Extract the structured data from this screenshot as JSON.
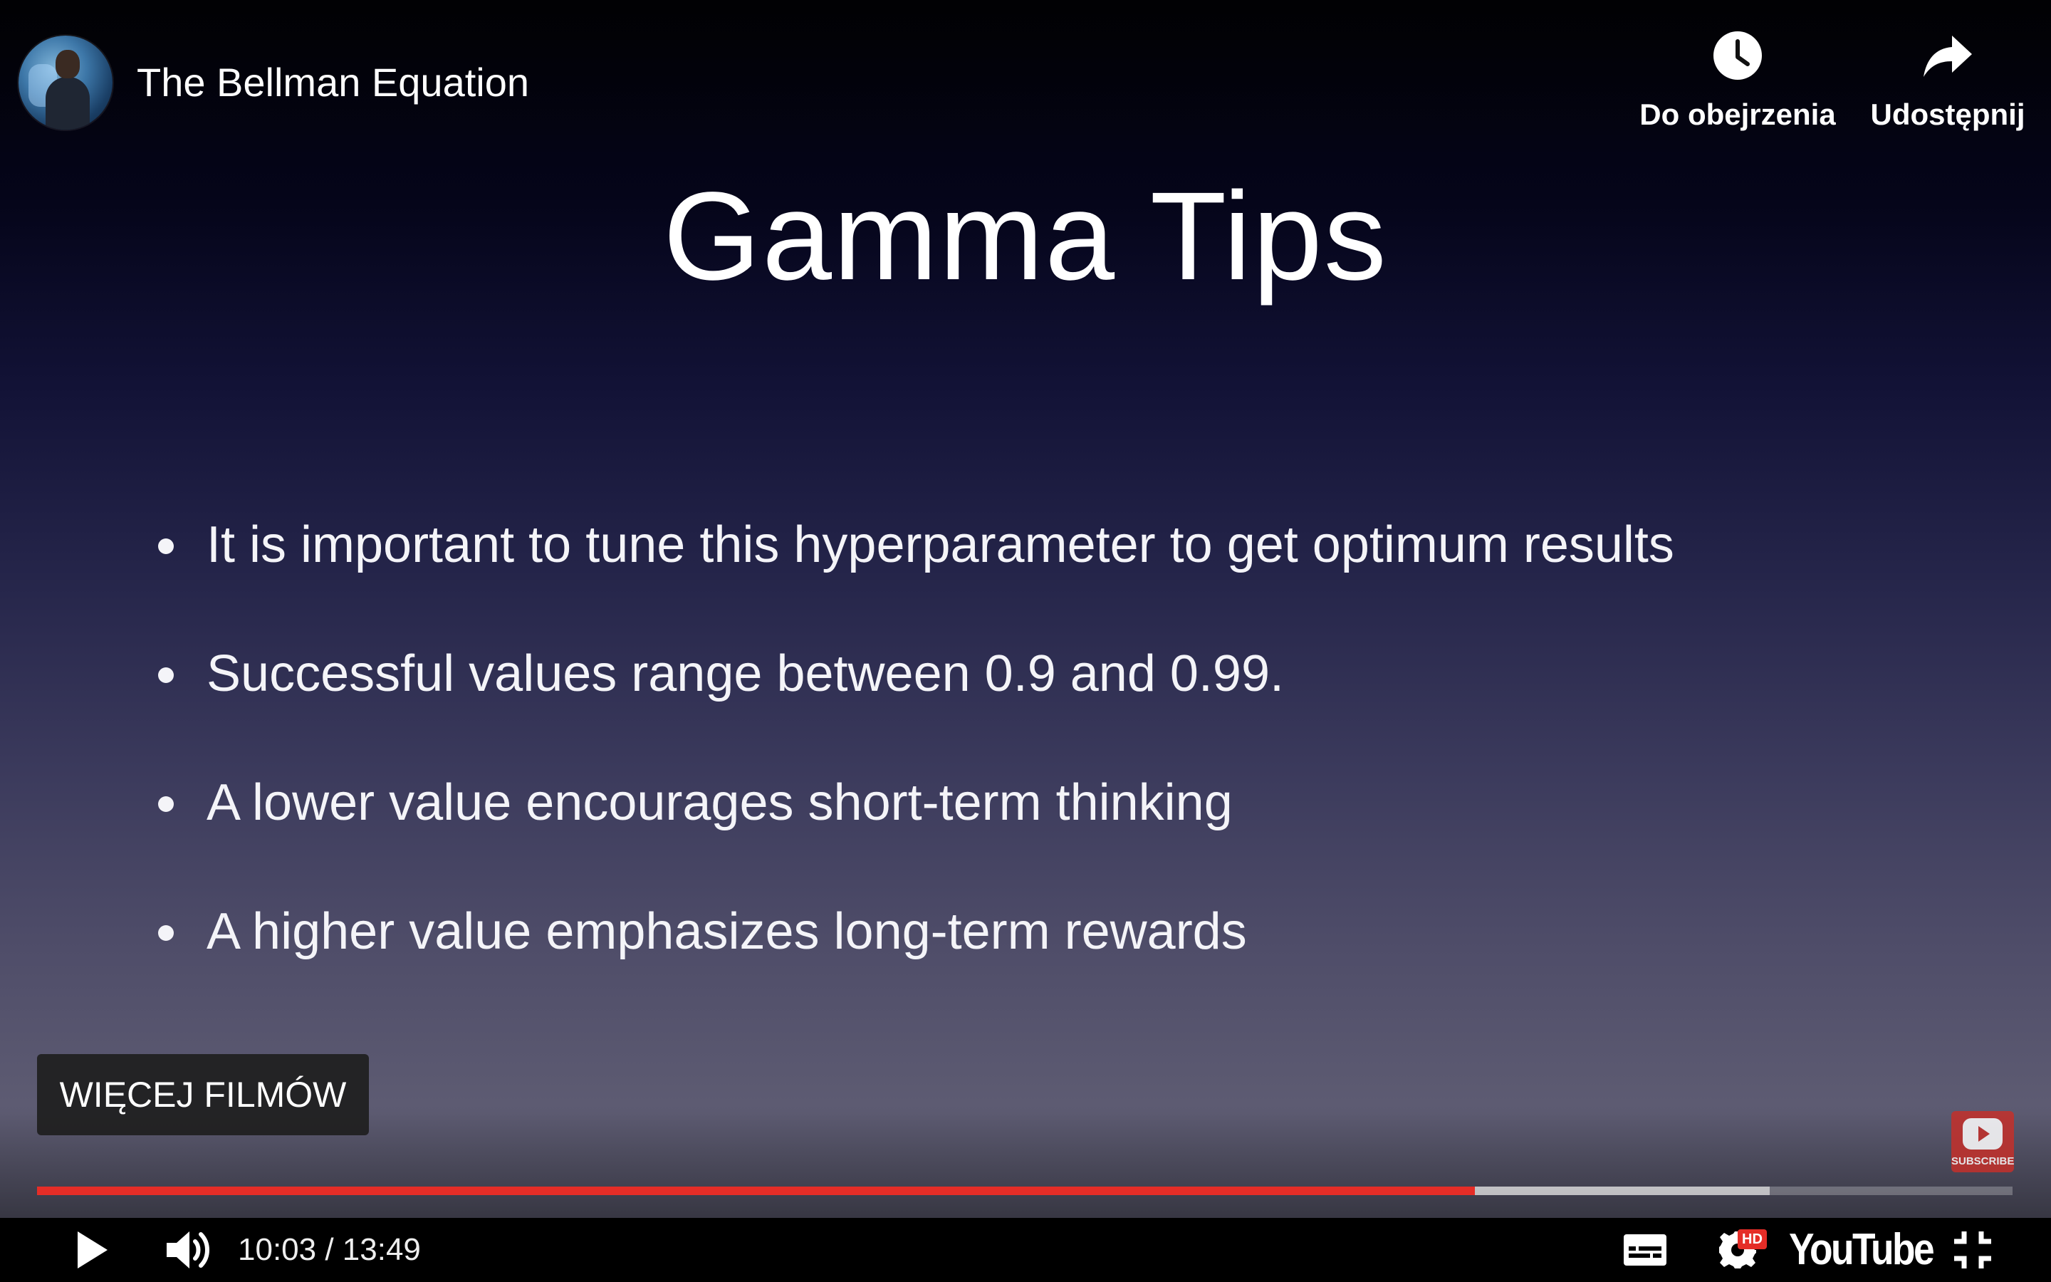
{
  "header": {
    "title": "The Bellman Equation",
    "actions": [
      {
        "label": "Do obejrzenia",
        "icon": "clock-icon"
      },
      {
        "label": "Udostępnij",
        "icon": "share-arrow-icon"
      }
    ]
  },
  "slide": {
    "title": "Gamma Tips",
    "bullets": [
      "It is important to tune this hyperparameter to get optimum results",
      "Successful values range between 0.9 and 0.99.",
      "A lower value encourages short-term thinking",
      "A higher value emphasizes long-term rewards"
    ]
  },
  "more_videos_label": "WIĘCEJ FILMÓW",
  "subscribe_label": "SUBSCRIBE",
  "progress": {
    "played_fraction": 0.7277,
    "buffered_fraction": 0.877
  },
  "controls": {
    "time": "10:03 / 13:49",
    "hd_badge": "HD",
    "logo": "YouTube"
  },
  "colors": {
    "progress_played": "#e52d27",
    "subscribe": "#c4302b"
  }
}
